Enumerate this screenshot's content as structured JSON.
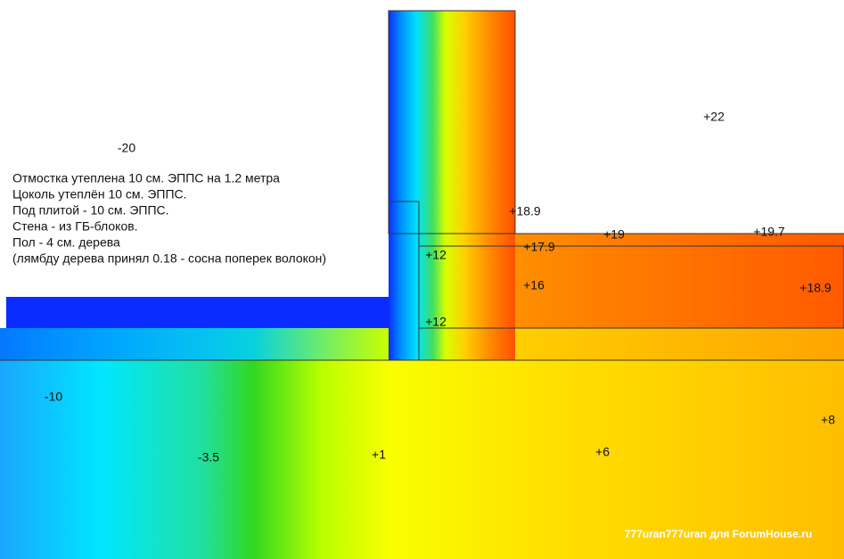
{
  "labels": {
    "outside": "-20",
    "inside": "+22",
    "wall_inner": "+18.9",
    "corner": "+17.9",
    "floor_top": "+19",
    "floor_right": "+19.7",
    "slab_top": "+12",
    "slab_mid": "+16",
    "slab_right": "+18.9",
    "slab_bottom": "+12",
    "ground_left": "-10",
    "ground_mid": "-3.5",
    "ground_center": "+1",
    "ground_right": "+6",
    "ground_far": "+8"
  },
  "notes": [
    "Отмостка утеплена 10 см. ЭППС на 1.2 метра",
    "Цоколь утеплён 10 см. ЭППС.",
    "Под плитой - 10 см. ЭППС.",
    "Стена - из ГБ-блоков.",
    "Пол - 4 см. дерева",
    "(лямбду дерева принял 0.18 - сосна поперек волокон)"
  ],
  "watermark": "777uran777uran для ForumHouse.ru"
}
